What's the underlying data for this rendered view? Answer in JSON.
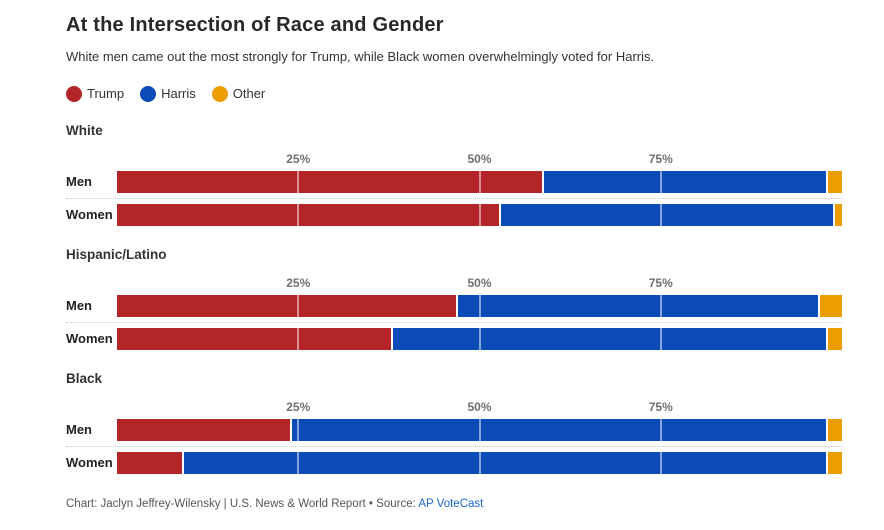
{
  "header": {
    "title": "At the Intersection of Race and Gender",
    "subtitle": "White men came out the most strongly for Trump, while Black women overwhelmingly voted for Harris."
  },
  "legend": {
    "items": [
      {
        "label": "Trump",
        "color": "#b32528"
      },
      {
        "label": "Harris",
        "color": "#0a4bb7"
      },
      {
        "label": "Other",
        "color": "#ec9e00"
      }
    ]
  },
  "chart_data": {
    "type": "bar",
    "stacked": true,
    "orientation": "horizontal",
    "unit": "percent",
    "xlim": [
      0,
      100
    ],
    "x_ticks": [
      "25%",
      "50%",
      "75%"
    ],
    "x_tick_values": [
      25,
      50,
      75
    ],
    "series_names": [
      "Trump",
      "Harris",
      "Other"
    ],
    "legend_position": "top",
    "grid": "vertical-on-bars",
    "groups": [
      {
        "label": "White",
        "rows": [
          {
            "label": "Men",
            "values": [
              59,
              39,
              2
            ]
          },
          {
            "label": "Women",
            "values": [
              53,
              46,
              1
            ]
          }
        ]
      },
      {
        "label": "Hispanic/Latino",
        "rows": [
          {
            "label": "Men",
            "values": [
              47,
              50,
              3
            ]
          },
          {
            "label": "Women",
            "values": [
              38,
              60,
              2
            ]
          }
        ]
      },
      {
        "label": "Black",
        "rows": [
          {
            "label": "Men",
            "values": [
              24,
              74,
              2
            ]
          },
          {
            "label": "Women",
            "values": [
              9,
              89,
              2
            ]
          }
        ]
      }
    ]
  },
  "footer": {
    "credit": "Chart: Jaclyn Jeffrey-Wilensky | U.S. News & World Report • Source:",
    "source_link": "AP VoteCast"
  }
}
